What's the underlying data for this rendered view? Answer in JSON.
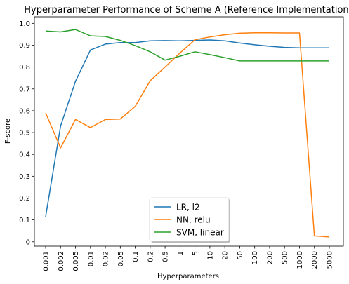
{
  "chart_data": {
    "type": "line",
    "title": "Hyperparameter Performance of Scheme A (Reference Implementation)",
    "xlabel": "Hyperparameters",
    "ylabel": "F-score",
    "categories": [
      "0.001",
      "0.002",
      "0.005",
      "0.01",
      "0.02",
      "0.05",
      "0.1",
      "0.2",
      "0.5",
      "1",
      "5",
      "10",
      "20",
      "50",
      "100",
      "200",
      "500",
      "1000",
      "2000",
      "5000"
    ],
    "ylim": [
      -0.02,
      1.03
    ],
    "yticks": [
      "0",
      "0.1",
      "0.2",
      "0.3",
      "0.4",
      "0.5",
      "0.6",
      "0.7",
      "0.8",
      "0.9",
      "1.0"
    ],
    "grid": false,
    "legend_position": "lower-center",
    "series": [
      {
        "name": "LR, l2",
        "color": "#1f77b4",
        "values": [
          0.115,
          0.53,
          0.735,
          0.878,
          0.905,
          0.912,
          0.912,
          0.92,
          0.921,
          0.92,
          0.922,
          0.924,
          0.92,
          0.91,
          0.902,
          0.895,
          0.89,
          0.888,
          0.888,
          0.888
        ]
      },
      {
        "name": "NN, relu",
        "color": "#ff7f0e",
        "values": [
          0.59,
          0.43,
          0.56,
          0.523,
          0.56,
          0.562,
          0.62,
          0.737,
          0.8,
          0.865,
          0.925,
          0.938,
          0.948,
          0.955,
          0.957,
          0.957,
          0.956,
          0.956,
          0.027,
          0.022
        ]
      },
      {
        "name": "SVM, linear",
        "color": "#2ca02c",
        "values": [
          0.965,
          0.961,
          0.972,
          0.943,
          0.94,
          0.922,
          0.898,
          0.87,
          0.832,
          0.85,
          0.87,
          0.857,
          0.843,
          0.828,
          0.828,
          0.828,
          0.828,
          0.828,
          0.828,
          0.828
        ]
      }
    ]
  }
}
